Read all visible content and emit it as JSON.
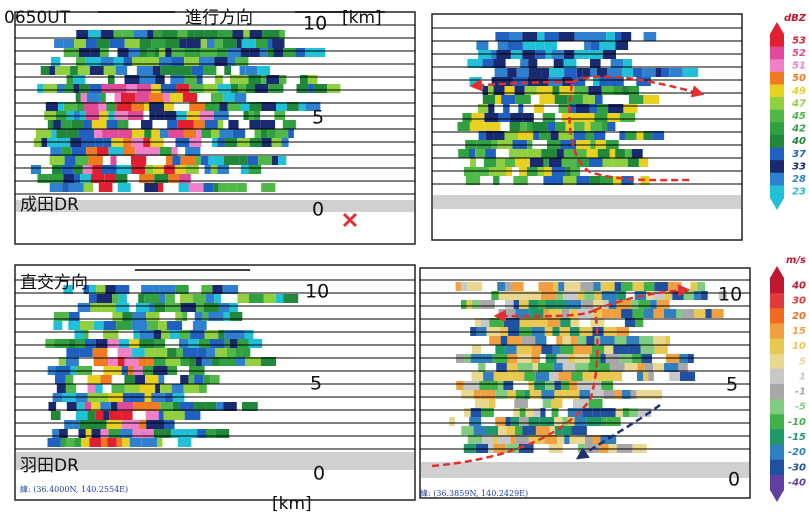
{
  "top_left": {
    "time_label": "0650UT",
    "direction_label": "進行方向",
    "unit_label": "[km]",
    "axis_labels": [
      "10",
      "5",
      "0"
    ],
    "radar_label": "成田DR"
  },
  "bottom_left": {
    "direction_label": "直交方向",
    "axis_labels": [
      "10",
      "5",
      "0"
    ],
    "radar_label": "羽田DR",
    "coordinates": "緯: (36.4000N, 140.2554E)",
    "unit_label": "[km]"
  },
  "bottom_right": {
    "axis_labels": [
      "10",
      "5",
      "0"
    ],
    "coordinates": "緯: (36.3859N, 140.2429E)"
  },
  "reflectivity_scale": {
    "unit": "dBZ",
    "levels": [
      {
        "label": "53",
        "color": "#e02030"
      },
      {
        "label": "52",
        "color": "#e04a9a"
      },
      {
        "label": "51",
        "color": "#f080c8"
      },
      {
        "label": "50",
        "color": "#f07a20"
      },
      {
        "label": "49",
        "color": "#e8d020"
      },
      {
        "label": "47",
        "color": "#90d040"
      },
      {
        "label": "45",
        "color": "#50b848"
      },
      {
        "label": "42",
        "color": "#30a040"
      },
      {
        "label": "40",
        "color": "#208838"
      },
      {
        "label": "37",
        "color": "#2060c0"
      },
      {
        "label": "33",
        "color": "#1a2a70"
      },
      {
        "label": "28",
        "color": "#3080d0"
      },
      {
        "label": "23",
        "color": "#20c0d8"
      }
    ]
  },
  "velocity_scale": {
    "unit": "m/s",
    "levels": [
      {
        "label": "40",
        "color": "#c01830"
      },
      {
        "label": "30",
        "color": "#e03a3a"
      },
      {
        "label": "20",
        "color": "#f06a20"
      },
      {
        "label": "15",
        "color": "#f0a040"
      },
      {
        "label": "10",
        "color": "#e8c850"
      },
      {
        "label": "5",
        "color": "#e8d890"
      },
      {
        "label": "1",
        "color": "#c8c8c8"
      },
      {
        "label": "-1",
        "color": "#a8a8a8"
      },
      {
        "label": "-5",
        "color": "#80cc80"
      },
      {
        "label": "-10",
        "color": "#40b048"
      },
      {
        "label": "-15",
        "color": "#209868"
      },
      {
        "label": "-20",
        "color": "#3080c0"
      },
      {
        "label": "-30",
        "color": "#2050a0"
      },
      {
        "label": "-40",
        "color": "#6040a0"
      }
    ]
  }
}
